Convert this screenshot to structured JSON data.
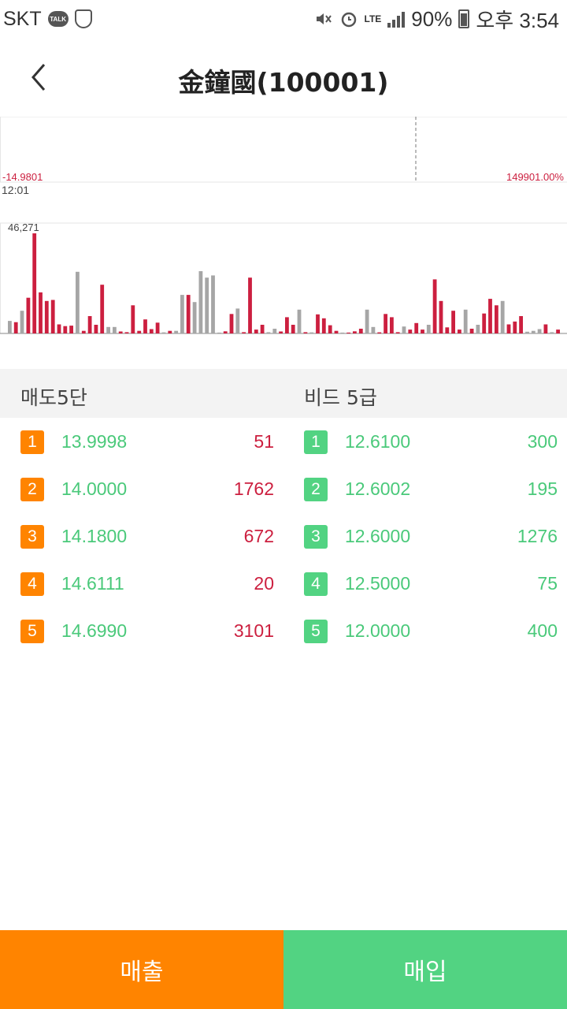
{
  "status_bar": {
    "carrier": "SKT",
    "talk_badge": "TALK",
    "network": "LTE",
    "battery": "90%",
    "time": "오후 3:54"
  },
  "header": {
    "title": "金鐘國(100001)"
  },
  "price_chart": {
    "left_label": "-14.9801",
    "right_label": "149901.00%",
    "time_label": "12:01"
  },
  "chart_data": {
    "type": "bar",
    "title": "",
    "max_label": "46,271",
    "ylim": [
      0,
      46271
    ],
    "colors": {
      "up": "#cc1f3f",
      "neutral": "#a6a6a6"
    },
    "series": [
      {
        "c": "g",
        "v": 5800
      },
      {
        "c": "r",
        "v": 5200
      },
      {
        "c": "g",
        "v": 10500
      },
      {
        "c": "r",
        "v": 16500
      },
      {
        "c": "r",
        "v": 46271
      },
      {
        "c": "r",
        "v": 19000
      },
      {
        "c": "r",
        "v": 15000
      },
      {
        "c": "r",
        "v": 15500
      },
      {
        "c": "r",
        "v": 4200
      },
      {
        "c": "r",
        "v": 3400
      },
      {
        "c": "r",
        "v": 3600
      },
      {
        "c": "g",
        "v": 28500
      },
      {
        "c": "r",
        "v": 1200
      },
      {
        "c": "r",
        "v": 8000
      },
      {
        "c": "r",
        "v": 4000
      },
      {
        "c": "r",
        "v": 22500
      },
      {
        "c": "g",
        "v": 3000
      },
      {
        "c": "g",
        "v": 3000
      },
      {
        "c": "r",
        "v": 900
      },
      {
        "c": "r",
        "v": 600
      },
      {
        "c": "r",
        "v": 13000
      },
      {
        "c": "r",
        "v": 1200
      },
      {
        "c": "r",
        "v": 6500
      },
      {
        "c": "r",
        "v": 2000
      },
      {
        "c": "r",
        "v": 5000
      },
      {
        "c": "g",
        "v": 500
      },
      {
        "c": "r",
        "v": 1200
      },
      {
        "c": "g",
        "v": 1200
      },
      {
        "c": "g",
        "v": 17800
      },
      {
        "c": "r",
        "v": 17800
      },
      {
        "c": "g",
        "v": 14500
      },
      {
        "c": "g",
        "v": 28800
      },
      {
        "c": "g",
        "v": 25800
      },
      {
        "c": "g",
        "v": 26800
      },
      {
        "c": "g",
        "v": 400
      },
      {
        "c": "r",
        "v": 1000
      },
      {
        "c": "r",
        "v": 9000
      },
      {
        "c": "g",
        "v": 11500
      },
      {
        "c": "r",
        "v": 600
      },
      {
        "c": "r",
        "v": 25800
      },
      {
        "c": "r",
        "v": 1800
      },
      {
        "c": "r",
        "v": 4000
      },
      {
        "c": "g",
        "v": 600
      },
      {
        "c": "g",
        "v": 2200
      },
      {
        "c": "r",
        "v": 900
      },
      {
        "c": "r",
        "v": 7500
      },
      {
        "c": "r",
        "v": 4000
      },
      {
        "c": "g",
        "v": 11000
      },
      {
        "c": "r",
        "v": 600
      },
      {
        "c": "g",
        "v": 500
      },
      {
        "c": "r",
        "v": 8800
      },
      {
        "c": "r",
        "v": 7000
      },
      {
        "c": "r",
        "v": 3800
      },
      {
        "c": "r",
        "v": 1200
      },
      {
        "c": "g",
        "v": 400
      },
      {
        "c": "r",
        "v": 400
      },
      {
        "c": "r",
        "v": 1000
      },
      {
        "c": "r",
        "v": 2200
      },
      {
        "c": "g",
        "v": 11000
      },
      {
        "c": "g",
        "v": 3000
      },
      {
        "c": "r",
        "v": 500
      },
      {
        "c": "r",
        "v": 9000
      },
      {
        "c": "r",
        "v": 7500
      },
      {
        "c": "r",
        "v": 600
      },
      {
        "c": "g",
        "v": 3200
      },
      {
        "c": "r",
        "v": 1800
      },
      {
        "c": "r",
        "v": 4800
      },
      {
        "c": "r",
        "v": 1800
      },
      {
        "c": "g",
        "v": 4000
      },
      {
        "c": "r",
        "v": 25000
      },
      {
        "c": "r",
        "v": 15000
      },
      {
        "c": "r",
        "v": 2800
      },
      {
        "c": "r",
        "v": 10500
      },
      {
        "c": "r",
        "v": 1800
      },
      {
        "c": "g",
        "v": 11000
      },
      {
        "c": "r",
        "v": 2200
      },
      {
        "c": "g",
        "v": 4000
      },
      {
        "c": "r",
        "v": 9200
      },
      {
        "c": "r",
        "v": 16000
      },
      {
        "c": "r",
        "v": 13000
      },
      {
        "c": "g",
        "v": 15000
      },
      {
        "c": "r",
        "v": 4200
      },
      {
        "c": "r",
        "v": 5500
      },
      {
        "c": "r",
        "v": 8000
      },
      {
        "c": "g",
        "v": 800
      },
      {
        "c": "g",
        "v": 1200
      },
      {
        "c": "g",
        "v": 2000
      },
      {
        "c": "r",
        "v": 4200
      },
      {
        "c": "g",
        "v": 600
      },
      {
        "c": "r",
        "v": 1800
      }
    ]
  },
  "order_book": {
    "ask_header": "매도5단",
    "bid_header": "비드 5급",
    "asks": [
      {
        "rank": "1",
        "price": "13.9998",
        "qty": "51"
      },
      {
        "rank": "2",
        "price": "14.0000",
        "qty": "1762"
      },
      {
        "rank": "3",
        "price": "14.1800",
        "qty": "672"
      },
      {
        "rank": "4",
        "price": "14.6111",
        "qty": "20"
      },
      {
        "rank": "5",
        "price": "14.6990",
        "qty": "3101"
      }
    ],
    "bids": [
      {
        "rank": "1",
        "price": "12.6100",
        "qty": "300"
      },
      {
        "rank": "2",
        "price": "12.6002",
        "qty": "195"
      },
      {
        "rank": "3",
        "price": "12.6000",
        "qty": "1276"
      },
      {
        "rank": "4",
        "price": "12.5000",
        "qty": "75"
      },
      {
        "rank": "5",
        "price": "12.0000",
        "qty": "400"
      }
    ]
  },
  "actions": {
    "sell_label": "매출",
    "buy_label": "매입"
  }
}
